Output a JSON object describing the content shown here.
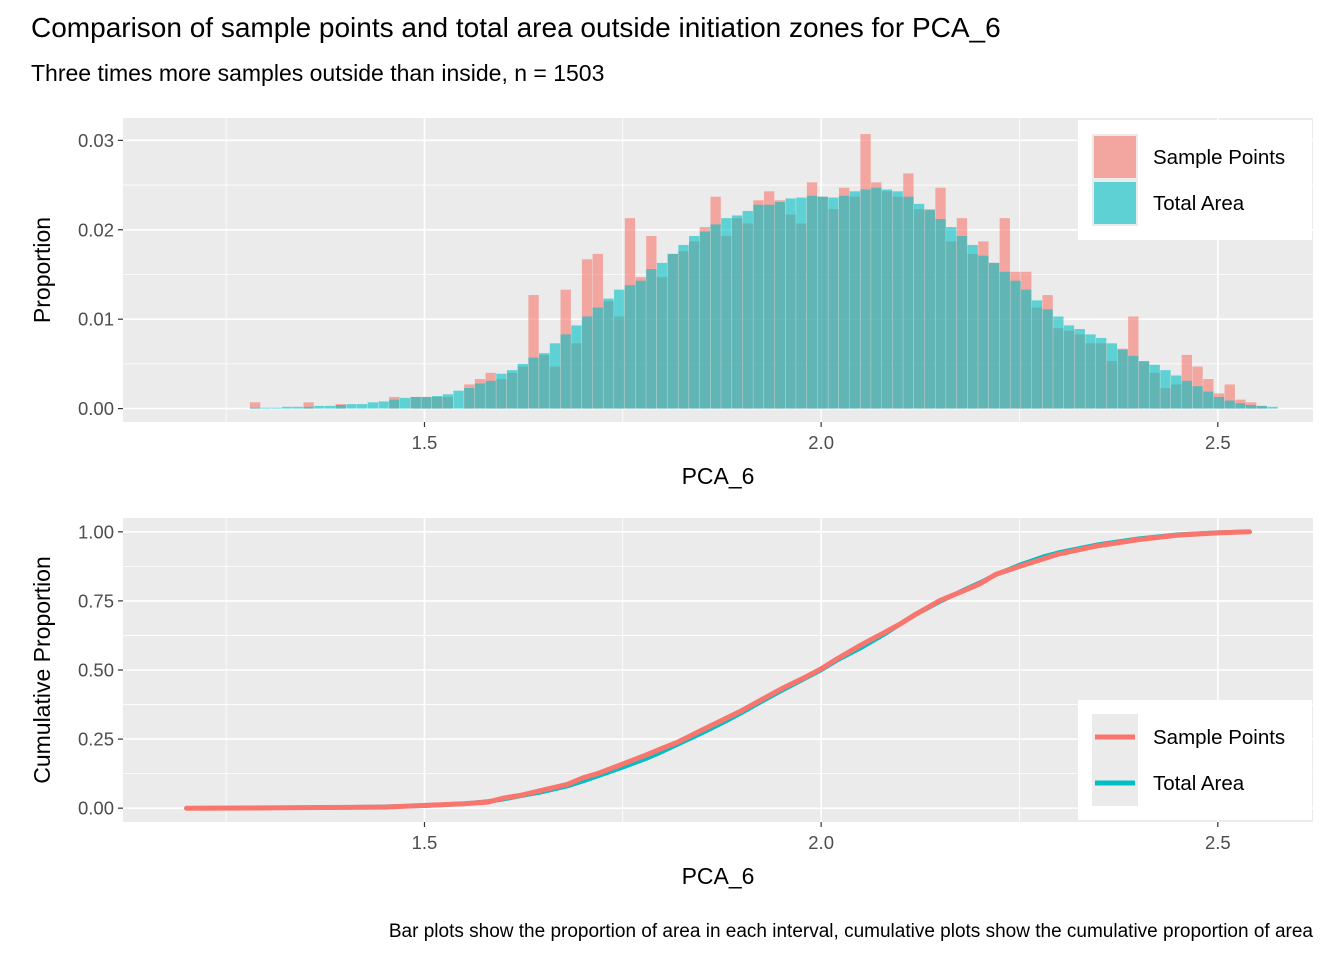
{
  "title": "Comparison of sample points and total area outside initiation zones for PCA_6",
  "subtitle": "Three times more samples outside than inside, n = 1503",
  "caption": "Bar plots show the proportion of area in each interval, cumulative plots show the cumulative proportion of area",
  "colors": {
    "sample": "#F8766D",
    "total": "#00BFC4",
    "panel": "#EBEBEB",
    "grid": "#FFFFFF",
    "tick_text": "#4D4D4D"
  },
  "chart_data": [
    {
      "type": "bar",
      "title": "",
      "xlabel": "PCA_6",
      "ylabel": "Proportion",
      "xlim": [
        1.12,
        2.62
      ],
      "ylim": [
        -0.0015,
        0.0325
      ],
      "x_ticks": [
        1.5,
        2.0,
        2.5
      ],
      "x_tick_labels": [
        "1.5",
        "2.0",
        "2.5"
      ],
      "y_ticks": [
        0,
        0.01,
        0.02,
        0.03
      ],
      "y_tick_labels": [
        "0.00",
        "0.01",
        "0.02",
        "0.03"
      ],
      "grid": true,
      "legend": {
        "position": "top-right",
        "entries": [
          "Sample Points",
          "Total Area"
        ]
      },
      "bin_start": 1.28,
      "bin_width": 0.0135,
      "series": [
        {
          "name": "Sample Points",
          "values": [
            0.0007,
            0,
            0,
            0,
            0,
            0.0007,
            0,
            0,
            0.0005,
            0,
            0,
            0,
            0,
            0.0013,
            0,
            0.0013,
            0.0013,
            0.0013,
            0.0013,
            0,
            0.0027,
            0.0033,
            0.004,
            0.0033,
            0.004,
            0.0047,
            0.0127,
            0.006,
            0.0047,
            0.0133,
            0.0073,
            0.0167,
            0.0173,
            0.012,
            0.0103,
            0.0213,
            0.0147,
            0.0193,
            0.0147,
            0.0173,
            0.0176,
            0.0187,
            0.0203,
            0.0237,
            0.0193,
            0.0213,
            0.0207,
            0.0233,
            0.0243,
            0.0233,
            0.0217,
            0.0207,
            0.0253,
            0.0237,
            0.0223,
            0.0247,
            0.0237,
            0.0307,
            0.0253,
            0.0243,
            0.0237,
            0.0263,
            0.0223,
            0.0223,
            0.0247,
            0.0187,
            0.0213,
            0.0173,
            0.0187,
            0.0163,
            0.0213,
            0.0153,
            0.0153,
            0.0113,
            0.0127,
            0.009,
            0.0087,
            0.0083,
            0.0073,
            0.0073,
            0.0053,
            0.0067,
            0.0103,
            0.0053,
            0.004,
            0.0023,
            0.0027,
            0.006,
            0.0047,
            0.0033,
            0.0017,
            0.0027,
            0.001,
            0.0007,
            0.0003,
            0
          ]
        },
        {
          "name": "Total Area",
          "values": [
            0.0001,
            0.0001,
            0.0001,
            0.0002,
            0.0002,
            0.0002,
            0.0003,
            0.0003,
            0.0004,
            0.0005,
            0.0005,
            0.0007,
            0.0008,
            0.001,
            0.0012,
            0.0013,
            0.0013,
            0.0014,
            0.0016,
            0.002,
            0.0023,
            0.0028,
            0.0031,
            0.0039,
            0.0043,
            0.005,
            0.0057,
            0.0062,
            0.0073,
            0.0083,
            0.0093,
            0.0103,
            0.0113,
            0.0123,
            0.0133,
            0.0138,
            0.0143,
            0.0156,
            0.0163,
            0.0173,
            0.0183,
            0.0193,
            0.0198,
            0.0206,
            0.0213,
            0.0216,
            0.0221,
            0.0228,
            0.0228,
            0.0231,
            0.0235,
            0.0236,
            0.0238,
            0.0237,
            0.0236,
            0.0238,
            0.0243,
            0.0245,
            0.0247,
            0.0245,
            0.0243,
            0.0237,
            0.0229,
            0.0222,
            0.0212,
            0.0203,
            0.0193,
            0.0183,
            0.0171,
            0.0163,
            0.0153,
            0.0143,
            0.0133,
            0.0121,
            0.0111,
            0.0103,
            0.0093,
            0.0089,
            0.0083,
            0.0079,
            0.0073,
            0.0066,
            0.0059,
            0.0053,
            0.0049,
            0.0043,
            0.0037,
            0.0031,
            0.0025,
            0.0019,
            0.0013,
            0.0009,
            0.0006,
            0.0004,
            0.0003,
            0.0002
          ]
        }
      ]
    },
    {
      "type": "line",
      "title": "",
      "xlabel": "PCA_6",
      "ylabel": "Cumulative Proportion",
      "xlim": [
        1.12,
        2.62
      ],
      "ylim": [
        -0.05,
        1.05
      ],
      "x_ticks": [
        1.5,
        2.0,
        2.5
      ],
      "x_tick_labels": [
        "1.5",
        "2.0",
        "2.5"
      ],
      "y_ticks": [
        0,
        0.25,
        0.5,
        0.75,
        1.0
      ],
      "y_tick_labels": [
        "0.00",
        "0.25",
        "0.50",
        "0.75",
        "1.00"
      ],
      "grid": true,
      "legend": {
        "position": "bottom-right",
        "entries": [
          "Sample Points",
          "Total Area"
        ]
      },
      "series": [
        {
          "name": "Total Area",
          "x": [
            1.2,
            1.3,
            1.35,
            1.4,
            1.45,
            1.5,
            1.55,
            1.58,
            1.6,
            1.62,
            1.65,
            1.68,
            1.7,
            1.72,
            1.75,
            1.78,
            1.8,
            1.82,
            1.85,
            1.88,
            1.9,
            1.92,
            1.95,
            1.98,
            2.0,
            2.02,
            2.05,
            2.08,
            2.1,
            2.12,
            2.15,
            2.18,
            2.2,
            2.22,
            2.25,
            2.28,
            2.3,
            2.35,
            2.4,
            2.45,
            2.5,
            2.54
          ],
          "y": [
            0,
            0.001,
            0.002,
            0.003,
            0.005,
            0.009,
            0.016,
            0.024,
            0.033,
            0.044,
            0.06,
            0.08,
            0.098,
            0.118,
            0.148,
            0.18,
            0.205,
            0.232,
            0.272,
            0.315,
            0.346,
            0.378,
            0.425,
            0.47,
            0.5,
            0.535,
            0.58,
            0.63,
            0.667,
            0.702,
            0.748,
            0.79,
            0.816,
            0.845,
            0.88,
            0.91,
            0.925,
            0.954,
            0.975,
            0.99,
            0.997,
            1.0
          ]
        },
        {
          "name": "Sample Points",
          "x": [
            1.2,
            1.3,
            1.35,
            1.4,
            1.45,
            1.5,
            1.55,
            1.58,
            1.6,
            1.62,
            1.65,
            1.68,
            1.7,
            1.72,
            1.75,
            1.78,
            1.8,
            1.82,
            1.85,
            1.88,
            1.9,
            1.92,
            1.95,
            1.98,
            2.0,
            2.02,
            2.05,
            2.08,
            2.1,
            2.12,
            2.15,
            2.18,
            2.2,
            2.22,
            2.25,
            2.28,
            2.3,
            2.35,
            2.4,
            2.45,
            2.5,
            2.54
          ],
          "y": [
            0,
            0.001,
            0.002,
            0.003,
            0.004,
            0.01,
            0.016,
            0.022,
            0.037,
            0.046,
            0.066,
            0.086,
            0.11,
            0.127,
            0.16,
            0.193,
            0.217,
            0.24,
            0.283,
            0.325,
            0.353,
            0.385,
            0.432,
            0.474,
            0.504,
            0.54,
            0.59,
            0.636,
            0.667,
            0.703,
            0.752,
            0.787,
            0.812,
            0.846,
            0.875,
            0.902,
            0.92,
            0.95,
            0.972,
            0.988,
            0.996,
            1.0
          ]
        }
      ]
    }
  ]
}
